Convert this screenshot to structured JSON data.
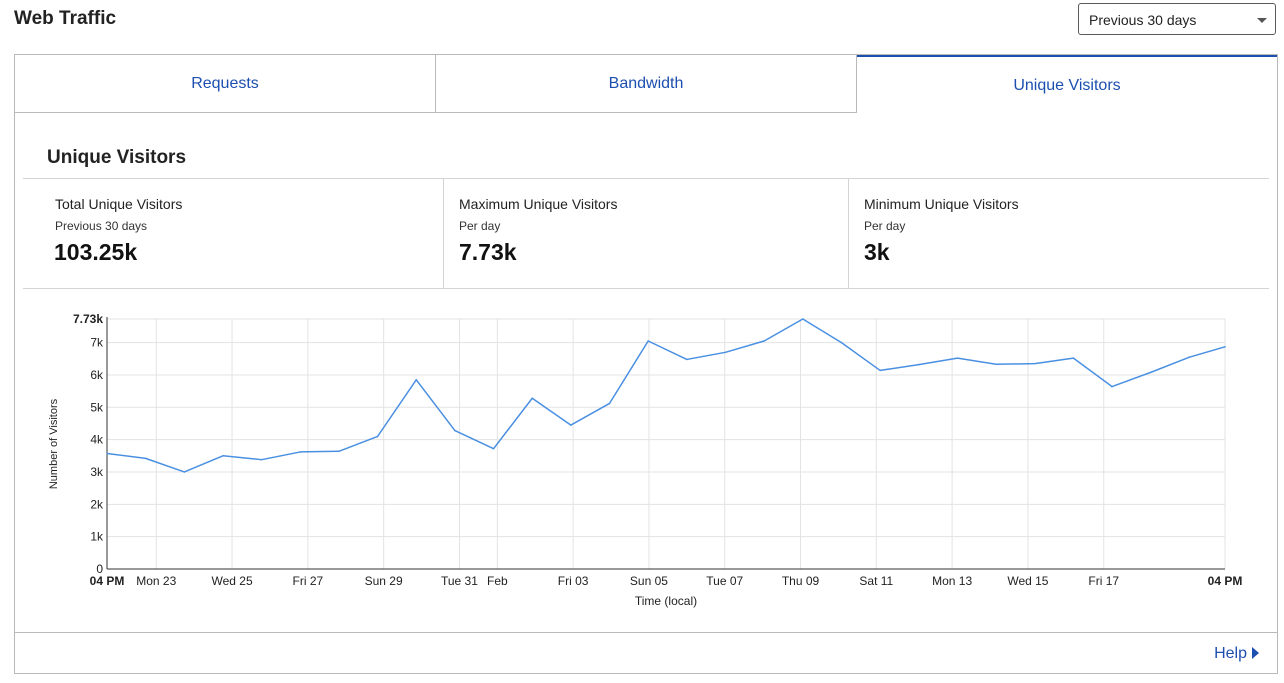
{
  "header": {
    "title": "Web Traffic",
    "range_select": {
      "value": "Previous 30 days"
    }
  },
  "tabs": [
    {
      "label": "Requests",
      "active": false
    },
    {
      "label": "Bandwidth",
      "active": false
    },
    {
      "label": "Unique Visitors",
      "active": true
    }
  ],
  "section": {
    "title": "Unique Visitors"
  },
  "stats": [
    {
      "label": "Total Unique Visitors",
      "sub": "Previous 30 days",
      "value": "103.25k"
    },
    {
      "label": "Maximum Unique Visitors",
      "sub": "Per day",
      "value": "7.73k"
    },
    {
      "label": "Minimum Unique Visitors",
      "sub": "Per day",
      "value": "3k"
    }
  ],
  "footer": {
    "help_label": "Help"
  },
  "colors": {
    "accent": "#1d4fb0",
    "line": "#4a90e2",
    "grid": "#e3e3e3"
  },
  "chart_data": {
    "type": "line",
    "title": "",
    "xlabel": "Time (local)",
    "ylabel": "Number of Visitors",
    "ylim": [
      0,
      7730
    ],
    "ymax_label": "7.73k",
    "y_ticks": [
      {
        "value": 0,
        "label": "0"
      },
      {
        "value": 1000,
        "label": "1k"
      },
      {
        "value": 2000,
        "label": "2k"
      },
      {
        "value": 3000,
        "label": "3k"
      },
      {
        "value": 4000,
        "label": "4k"
      },
      {
        "value": 5000,
        "label": "5k"
      },
      {
        "value": 6000,
        "label": "6k"
      },
      {
        "value": 7000,
        "label": "7k"
      }
    ],
    "xlim": [
      0,
      29.5
    ],
    "x_ticks": [
      {
        "x": 0,
        "label": "04 PM",
        "bold": true
      },
      {
        "x": 1.3,
        "label": "Mon 23",
        "bold": false
      },
      {
        "x": 3.3,
        "label": "Wed 25",
        "bold": false
      },
      {
        "x": 5.3,
        "label": "Fri 27",
        "bold": false
      },
      {
        "x": 7.3,
        "label": "Sun 29",
        "bold": false
      },
      {
        "x": 9.3,
        "label": "Tue 31",
        "bold": false
      },
      {
        "x": 10.3,
        "label": "Feb",
        "bold": false
      },
      {
        "x": 12.3,
        "label": "Fri 03",
        "bold": false
      },
      {
        "x": 14.3,
        "label": "Sun 05",
        "bold": false
      },
      {
        "x": 16.3,
        "label": "Tue 07",
        "bold": false
      },
      {
        "x": 18.3,
        "label": "Thu 09",
        "bold": false
      },
      {
        "x": 20.3,
        "label": "Sat 11",
        "bold": false
      },
      {
        "x": 22.3,
        "label": "Mon 13",
        "bold": false
      },
      {
        "x": 24.3,
        "label": "Wed 15",
        "bold": false
      },
      {
        "x": 26.3,
        "label": "Fri 17",
        "bold": false
      },
      {
        "x": 29.5,
        "label": "04 PM",
        "bold": true
      }
    ],
    "series": [
      {
        "x": [
          0,
          1.02,
          2.04,
          3.06,
          4.08,
          5.1,
          6.12,
          7.14,
          8.16,
          9.18,
          10.2,
          11.22,
          12.24,
          13.26,
          14.28,
          15.3,
          16.32,
          17.34,
          18.36,
          19.38,
          20.4,
          21.42,
          22.44,
          23.46,
          24.48,
          25.5,
          26.52,
          27.54,
          28.56,
          29.5
        ],
        "values": [
          3570,
          3420,
          3000,
          3500,
          3380,
          3620,
          3640,
          4100,
          5850,
          4280,
          3720,
          5280,
          4450,
          5120,
          7050,
          6480,
          6700,
          7050,
          7730,
          7000,
          6140,
          6320,
          6520,
          6330,
          6350,
          6520,
          5640,
          6080,
          6550,
          6870
        ]
      }
    ]
  }
}
